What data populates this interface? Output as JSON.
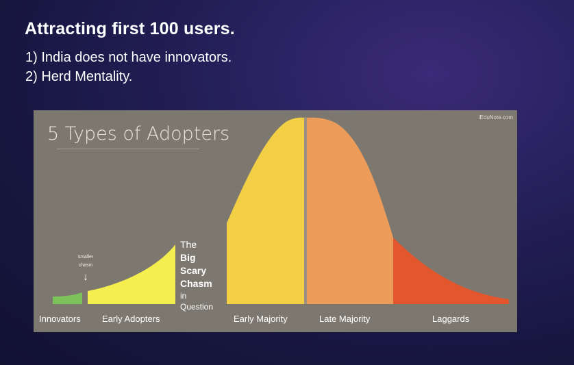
{
  "slide": {
    "title": "Attracting first 100 users.",
    "bullets": [
      "1) India does not have innovators.",
      "2) Herd Mentality."
    ]
  },
  "figure": {
    "title": "5 Types of Adopters",
    "watermark": "iEduNote.com",
    "annotation_small_chasm": [
      "smaller",
      "chasm"
    ],
    "chasm_label": {
      "line1_light": "The",
      "line1_bold": "Big",
      "line2": "Scary",
      "line3": "Chasm",
      "line4": "in",
      "line5": "Question"
    },
    "segments": [
      {
        "label": "Innovators",
        "color": "#7cc159"
      },
      {
        "label": "Early Adopters",
        "color": "#f4ee4e"
      },
      {
        "label": "Early Majority",
        "color": "#f2cf45"
      },
      {
        "label": "Late Majority",
        "color": "#ec9c58"
      },
      {
        "label": "Laggards",
        "color": "#e3572f"
      }
    ],
    "colors": {
      "background": "#7d786f",
      "divider": "#9b9080"
    }
  }
}
